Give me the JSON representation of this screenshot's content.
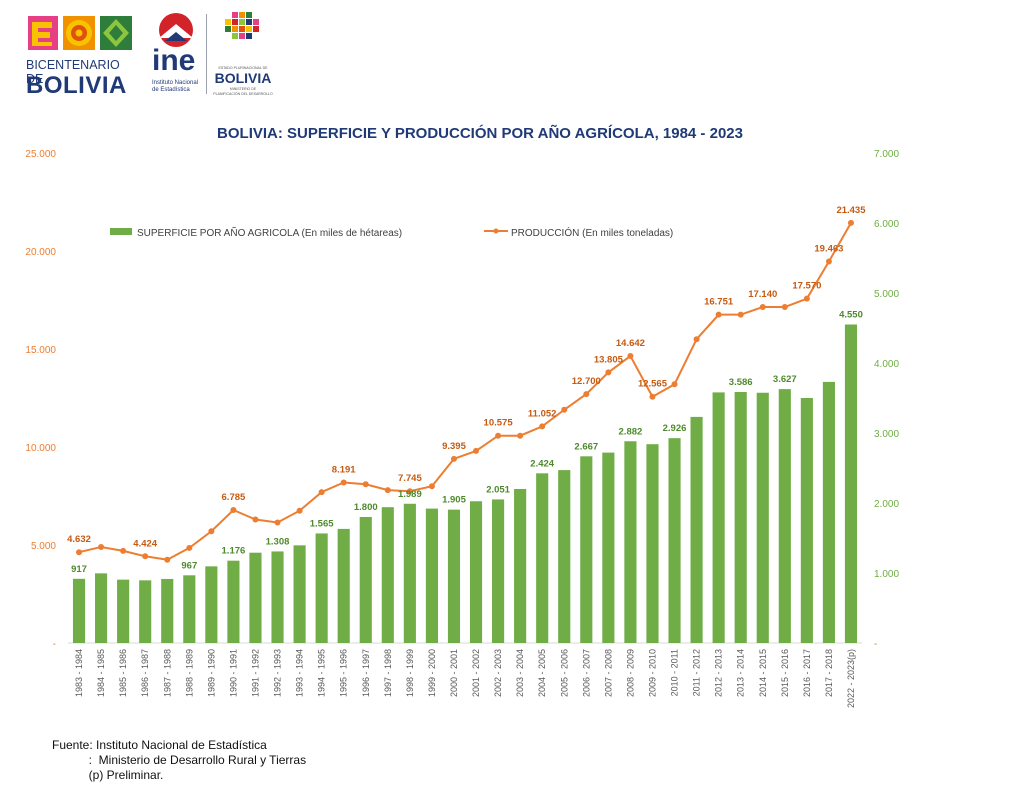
{
  "header": {
    "bicentenario_top": "BICENTENARIO DE",
    "bicentenario_bottom": "BOLIVIA",
    "ine_logo_text": "ine",
    "ine_sub1": "Instituto Nacional",
    "ine_sub2": "de Estadística",
    "ministerio_small_top": "ESTADO PLURINACIONAL DE",
    "ministerio_name": "BOLIVIA",
    "ministerio_sub1": "MINISTERIO DE",
    "ministerio_sub2": "PLANIFICACIÓN DEL DESARROLLO"
  },
  "chart_data": {
    "type": "bar+line",
    "title": "BOLIVIA: SUPERFICIE Y PRODUCCIÓN POR AÑO AGRÍCOLA, 1984 - 2023",
    "categories": [
      "1983 - 1984",
      "1984 - 1985",
      "1985 - 1986",
      "1986 - 1987",
      "1987 - 1988",
      "1988 - 1989",
      "1989 - 1990",
      "1990 - 1991",
      "1991 - 1992",
      "1992 - 1993",
      "1993 - 1994",
      "1994 - 1995",
      "1995 - 1996",
      "1996 - 1997",
      "1997 - 1998",
      "1998 - 1999",
      "1999 - 2000",
      "2000 - 2001",
      "2001 - 2002",
      "2002 - 2003",
      "2003 - 2004",
      "2004 - 2005",
      "2005 - 2006",
      "2006 - 2007",
      "2007 - 2008",
      "2008 - 2009",
      "2009 - 2010",
      "2010 - 2011",
      "2011 - 2012",
      "2012 - 2013",
      "2013 - 2014",
      "2014 - 2015",
      "2015 - 2016",
      "2016 - 2017",
      "2017 - 2018",
      "2022 - 2023(p)"
    ],
    "series": [
      {
        "name": "SUPERFICIE  POR AÑO AGRICOLA (En  miles de hétareas)",
        "type": "bar",
        "axis": "right",
        "color": "#70ad47",
        "values": [
          917,
          995,
          905,
          895,
          915,
          967,
          1095,
          1176,
          1290,
          1308,
          1395,
          1565,
          1630,
          1800,
          1940,
          1989,
          1920,
          1905,
          2025,
          2051,
          2200,
          2424,
          2470,
          2667,
          2720,
          2882,
          2840,
          2926,
          3230,
          3580,
          3586,
          3575,
          3627,
          3500,
          3730,
          4550
        ],
        "labels": [
          "917",
          "",
          "",
          "",
          "",
          "967",
          "",
          "1.176",
          "",
          "1.308",
          "",
          "1.565",
          "",
          "1.800",
          "",
          "1.989",
          "",
          "1.905",
          "",
          "2.051",
          "",
          "2.424",
          "",
          "2.667",
          "",
          "2.882",
          "",
          "2.926",
          "",
          "",
          "3.586",
          "",
          "3.627",
          "",
          "",
          "4.550"
        ]
      },
      {
        "name": "PRODUCCIÓN (En miles toneladas)",
        "type": "line",
        "axis": "left",
        "color": "#ed7d31",
        "values": [
          4632,
          4900,
          4700,
          4424,
          4250,
          4850,
          5700,
          6785,
          6300,
          6150,
          6750,
          7700,
          8191,
          8100,
          7800,
          7745,
          8000,
          9395,
          9800,
          10575,
          10575,
          11052,
          11900,
          12700,
          13805,
          14642,
          12565,
          13200,
          15500,
          16751,
          16751,
          17140,
          17140,
          17570,
          19463,
          21435
        ],
        "labels": [
          "4.632",
          "",
          "",
          "4.424",
          "",
          "",
          "",
          "6.785",
          "",
          "",
          "",
          "",
          "8.191",
          "",
          "",
          "7.745",
          "",
          "9.395",
          "",
          "10.575",
          "",
          "11.052",
          "",
          "12.700",
          "13.805",
          "14.642",
          "12.565",
          "",
          "",
          "16.751",
          "",
          "17.140",
          "",
          "17.570",
          "19.463",
          "21.435"
        ]
      }
    ],
    "y_left": {
      "min": 0,
      "max": 25000,
      "ticks": [
        0,
        5000,
        10000,
        15000,
        20000,
        25000
      ],
      "tick_labels": [
        "-",
        "5.000",
        "10.000",
        "15.000",
        "20.000",
        "25.000"
      ]
    },
    "y_right": {
      "min": 0,
      "max": 7000,
      "ticks": [
        0,
        1000,
        2000,
        3000,
        4000,
        5000,
        6000,
        7000
      ],
      "tick_labels": [
        "-",
        "1.000",
        "2.000",
        "3.000",
        "4.000",
        "5.000",
        "6.000",
        "7.000"
      ]
    },
    "legend_position": "top-left",
    "grid": false,
    "label_colors": {
      "axis_left": "#ed7d31",
      "axis_right": "#70ad47",
      "title": "#1f3a77",
      "bar_label": "#4e8a2b",
      "line_label": "#c55a11"
    }
  },
  "footer": {
    "line1": "Fuente: Instituto Nacional de Estadística",
    "line2": "           :  Ministerio de Desarrollo Rural y Tierras",
    "line3": "           (p) Preliminar."
  }
}
